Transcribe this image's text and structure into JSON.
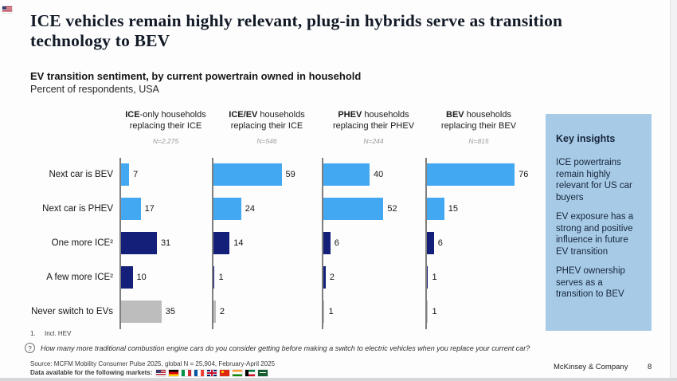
{
  "slide": {
    "title": "ICE vehicles remain highly relevant, plug-in hybrids serve as transition technology to BEV",
    "subtitle_bold": "EV transition sentiment, by current powertrain owned in household",
    "subtitle": "Percent of respondents, USA",
    "brand": "McKinsey & Company",
    "page_number": "8"
  },
  "chart_data": {
    "type": "bar",
    "orientation": "horizontal",
    "value_unit": "percent of respondents",
    "xlim": [
      0,
      100
    ],
    "categories": [
      "Next car is BEV",
      "Next car is PHEV",
      "One more ICE²",
      "A few more ICE²",
      "Never switch to EVs"
    ],
    "row_colors": [
      "#41a8f1",
      "#41a8f1",
      "#141f7a",
      "#141f7a",
      "#bdbdbd"
    ],
    "groups": [
      {
        "title_bold": "ICE",
        "title_rest": "-only households replacing their ICE",
        "n_label": "N=2,275",
        "values": [
          7,
          17,
          31,
          10,
          35
        ]
      },
      {
        "title_bold": "ICE/EV",
        "title_rest": " households replacing their ICE",
        "n_label": "N=546",
        "values": [
          59,
          24,
          14,
          1,
          2
        ]
      },
      {
        "title_bold": "PHEV",
        "title_rest": " households replacing their PHEV",
        "n_label": "N=244",
        "values": [
          40,
          52,
          6,
          2,
          1
        ]
      },
      {
        "title_bold": "BEV",
        "title_rest": " households replacing their BEV",
        "n_label": "N=815",
        "values": [
          76,
          15,
          6,
          1,
          1
        ]
      }
    ]
  },
  "key_insights": {
    "title": "Key insights",
    "bg_color": "#a7cbe6",
    "items": [
      "ICE powertrains remain highly relevant for US car buyers",
      "EV exposure has a strong and positive influence in future EV transition",
      "PHEV ownership serves as a transition to BEV"
    ]
  },
  "footnotes": {
    "note1_number": "1.",
    "note1_text": "Incl. HEV",
    "question_mark": "?",
    "question": "How many more traditional combustion engine cars do you consider getting before making a switch to electric vehicles when you replace your current car?"
  },
  "footer": {
    "source": "Source: MCFM Mobility Consumer Pulse 2025, global N = 25,904, February-April 2025",
    "markets_label": "Data available for the following markets:",
    "markets": [
      {
        "name": "USA",
        "code": "us"
      },
      {
        "name": "Germany",
        "code": "de"
      },
      {
        "name": "Italy",
        "code": "it"
      },
      {
        "name": "France",
        "code": "fr"
      },
      {
        "name": "United Kingdom",
        "code": "gb"
      },
      {
        "name": "China",
        "code": "cn"
      },
      {
        "name": "India",
        "code": "in"
      },
      {
        "name": "Kuwait",
        "code": "kw"
      },
      {
        "name": "Saudi Arabia",
        "code": "sa"
      }
    ]
  }
}
